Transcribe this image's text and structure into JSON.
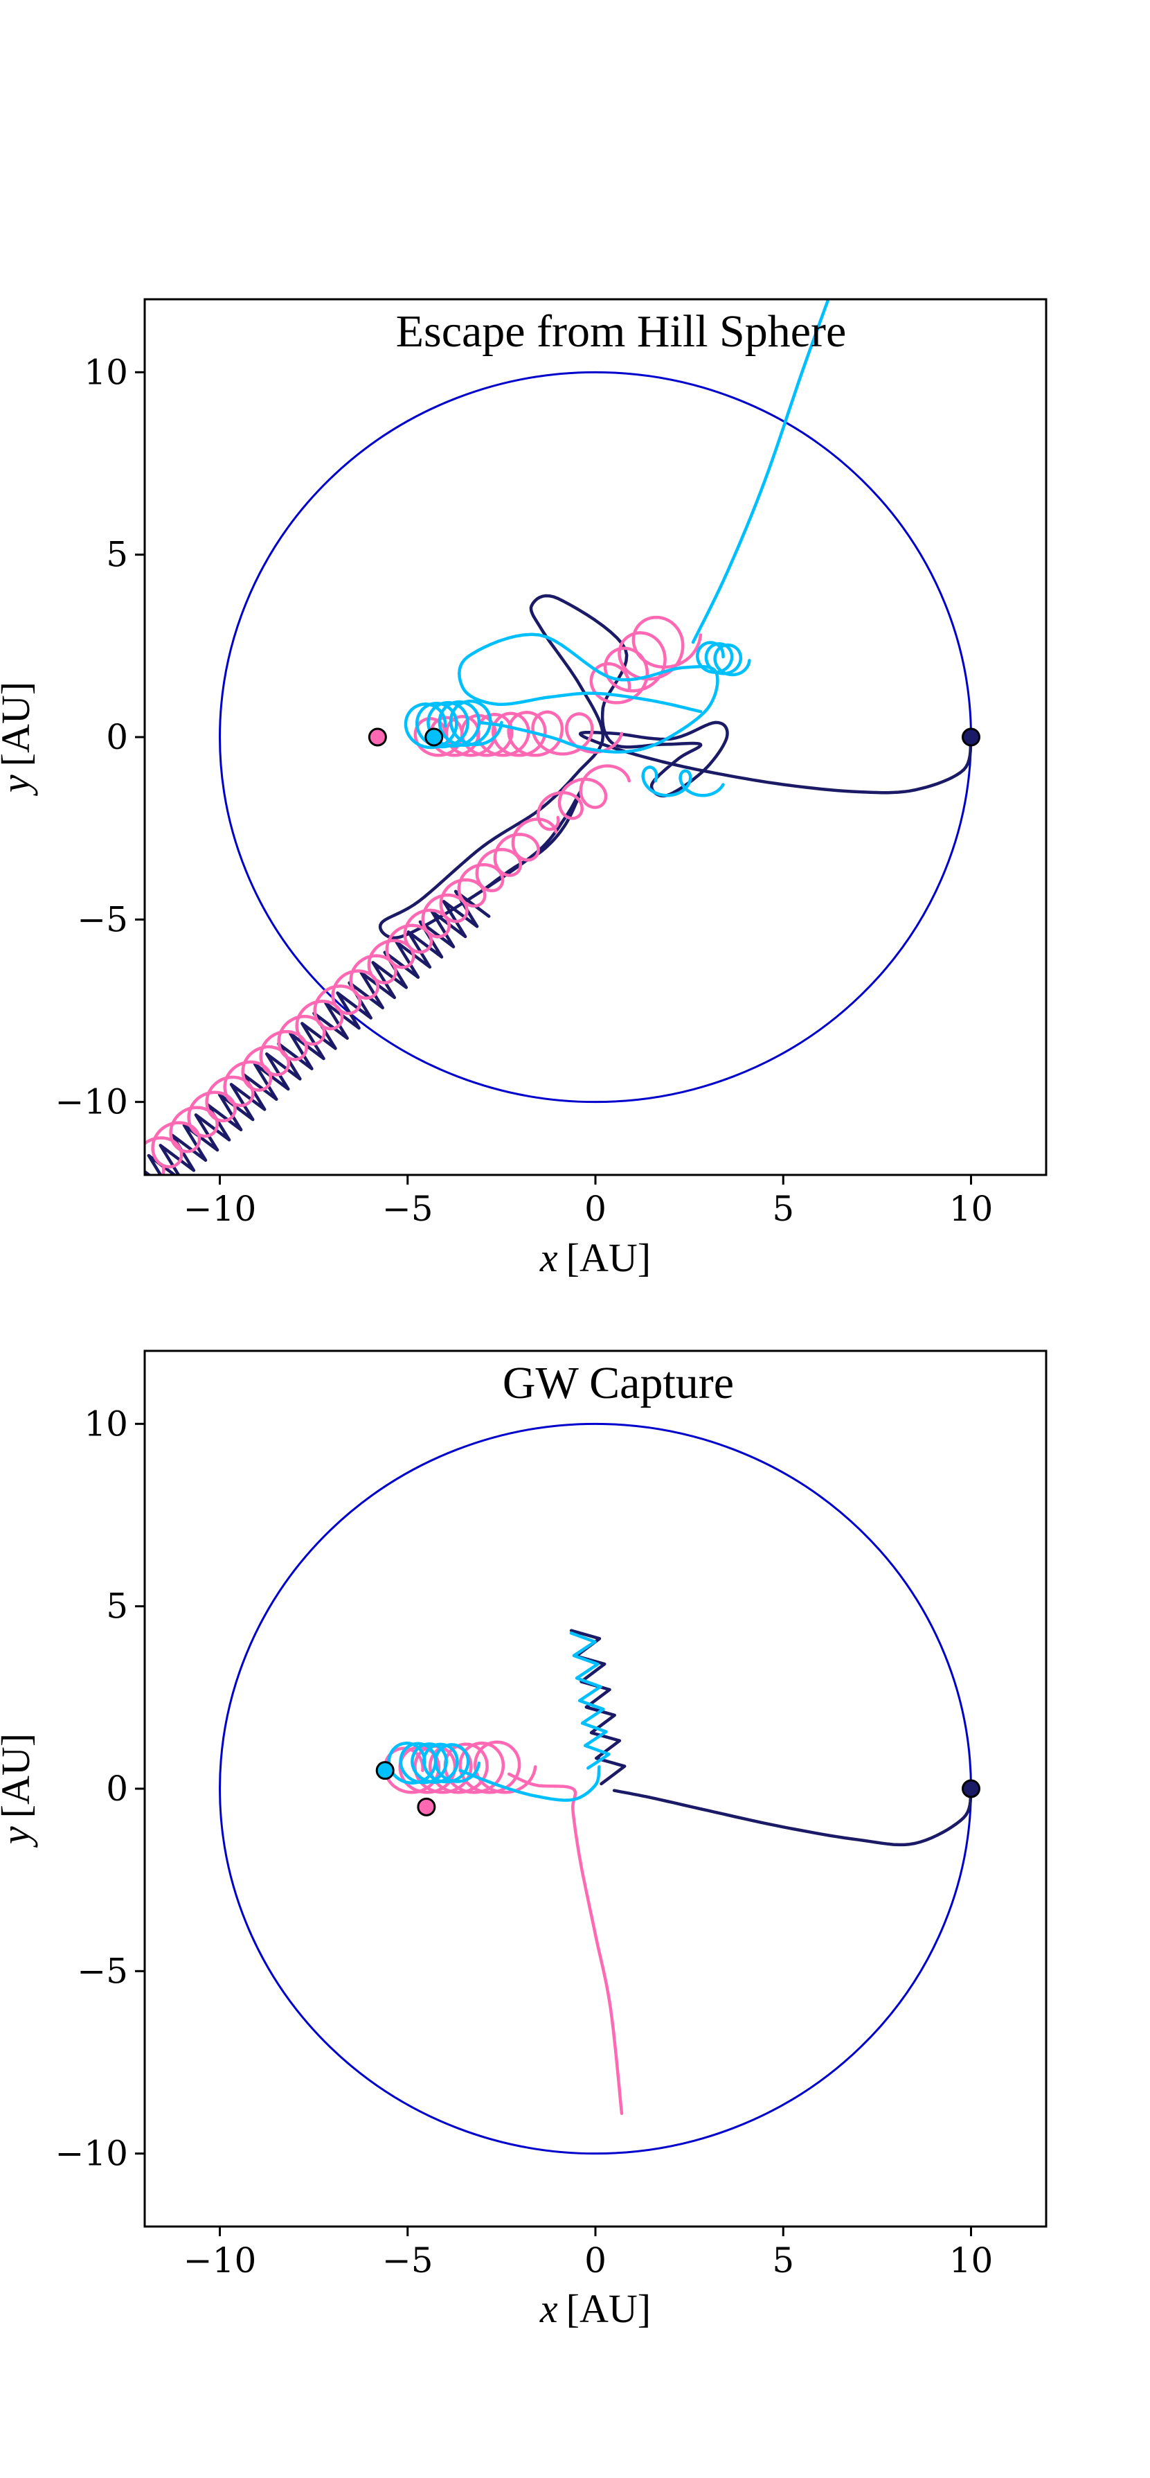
{
  "chart_data": [
    {
      "type": "line",
      "title": "Escape from Hill Sphere",
      "xlabel_var": "x",
      "xlabel_unit": "[AU]",
      "ylabel_var": "y",
      "ylabel_unit": "[AU]",
      "xlim": [
        -12,
        12
      ],
      "ylim": [
        -12,
        12
      ],
      "xticks": [
        -10,
        -5,
        0,
        5,
        10
      ],
      "yticks": [
        -10,
        -5,
        0,
        5,
        10
      ],
      "xtick_labels": [
        "−10",
        "−5",
        "0",
        "5",
        "10"
      ],
      "ytick_labels": [
        "−10",
        "−5",
        "0",
        "5",
        "10"
      ],
      "grid": false,
      "hill_sphere": {
        "center": [
          0,
          0
        ],
        "radius": 10,
        "color": "#0000cc"
      },
      "series": [
        {
          "color": "#1a1a66",
          "marker": {
            "x": 10,
            "y": 0
          },
          "segments": [
            {
              "kind": "path",
              "points": [
                [
                  10,
                  0
                ],
                [
                  9.8,
                  -0.9
                ],
                [
                  8.5,
                  -1.45
                ],
                [
                  7,
                  -1.5
                ],
                [
                  5,
                  -1.3
                ],
                [
                  3,
                  -0.95
                ],
                [
                  1.5,
                  -0.6
                ],
                [
                  0.2,
                  -0.2
                ],
                [
                  -0.4,
                  0.1
                ],
                [
                  0.5,
                  0.1
                ],
                [
                  2,
                  -0.05
                ],
                [
                  3.2,
                  0.4
                ],
                [
                  3.5,
                  0
                ],
                [
                  2.9,
                  -0.9
                ],
                [
                  1.9,
                  -1.6
                ],
                [
                  1.5,
                  -1.3
                ],
                [
                  2.2,
                  -0.6
                ],
                [
                  2.8,
                  -0.2
                ],
                [
                  1.8,
                  -0.2
                ],
                [
                  0.5,
                  -0.2
                ],
                [
                  0.2,
                  0.8
                ],
                [
                  0.8,
                  2.4
                ],
                [
                  -1,
                  3.8
                ],
                [
                  -1.7,
                  3.6
                ],
                [
                  -1.4,
                  2.9
                ],
                [
                  -0.4,
                  1.4
                ],
                [
                  0.2,
                  0
                ],
                [
                  -0.5,
                  -1
                ],
                [
                  -1.5,
                  -2
                ],
                [
                  -3,
                  -3
                ],
                [
                  -4.7,
                  -4.5
                ],
                [
                  -5.7,
                  -5.1
                ],
                [
                  -5.4,
                  -5.5
                ],
                [
                  -4.6,
                  -5.2
                ],
                [
                  -3,
                  -4.2
                ],
                [
                  -1.5,
                  -3.1
                ],
                [
                  -0.8,
                  -2.2
                ],
                [
                  -0.4,
                  -1.5
                ],
                [
                  -0.8,
                  -2.4
                ],
                [
                  -1.4,
                  -3.1
                ],
                [
                  -2.2,
                  -3.6
                ],
                [
                  -3,
                  -4.2
                ]
              ]
            },
            {
              "kind": "zigzag",
              "start": [
                -3.2,
                -4.5
              ],
              "end": [
                -12,
                -12.3
              ],
              "amplitude": 0.55,
              "count": 28
            }
          ]
        },
        {
          "color": "#ff69b4",
          "marker": {
            "x": -5.8,
            "y": 0
          },
          "segments": [
            {
              "kind": "coil",
              "start": [
                -4.5,
                0
              ],
              "end": [
                -1.5,
                0.1
              ],
              "r_start": 0.5,
              "r_end": 0.6,
              "loops": 7
            },
            {
              "kind": "coil",
              "start": [
                -1.5,
                0.1
              ],
              "end": [
                0.2,
                0.1
              ],
              "r_start": 0.6,
              "r_end": 0.5,
              "loops": 2
            },
            {
              "kind": "coil",
              "start": [
                0.3,
                1.3
              ],
              "end": [
                2,
                2.8
              ],
              "r_start": 0.6,
              "r_end": 0.8,
              "loops": 4
            },
            {
              "kind": "coil",
              "start": [
                0.4,
                -1.2
              ],
              "end": [
                -1.4,
                -2.2
              ],
              "r_start": 0.5,
              "r_end": 0.4,
              "loops": 3
            },
            {
              "kind": "coil",
              "start": [
                -1.5,
                -2.6
              ],
              "end": [
                -12,
                -11.8
              ],
              "r_start": 0.45,
              "r_end": 0.5,
              "loops": 22
            }
          ]
        },
        {
          "color": "#00bfff",
          "marker": {
            "x": -4.3,
            "y": 0
          },
          "segments": [
            {
              "kind": "coil",
              "start": [
                -4.6,
                0.3
              ],
              "end": [
                -3.1,
                0.4
              ],
              "r_start": 0.6,
              "r_end": 0.6,
              "loops": 5
            },
            {
              "kind": "path",
              "points": [
                [
                  -3.1,
                  0.4
                ],
                [
                  -2.4,
                  0.3
                ],
                [
                  -1.2,
                  0
                ],
                [
                  -0.3,
                  -0.3
                ],
                [
                  0.8,
                  -0.4
                ],
                [
                  1.8,
                  -0.1
                ],
                [
                  3,
                  0.8
                ],
                [
                  3.2,
                  1.8
                ],
                [
                  2.3,
                  1.9
                ],
                [
                  0.5,
                  1.6
                ],
                [
                  -1.5,
                  2.8
                ],
                [
                  -3.4,
                  2.2
                ],
                [
                  -3.5,
                  1.3
                ],
                [
                  -2.6,
                  0.9
                ],
                [
                  -1.2,
                  1.1
                ],
                [
                  0,
                  1.2
                ],
                [
                  1.5,
                  1
                ],
                [
                  2.8,
                  0.7
                ]
              ]
            },
            {
              "kind": "coil",
              "start": [
                1.2,
                -1.2
              ],
              "end": [
                3.1,
                -1.3
              ],
              "r_start": 0.4,
              "r_end": 0.3,
              "loops": 2
            },
            {
              "kind": "coil",
              "start": [
                3,
                2.2
              ],
              "end": [
                3.7,
                2.1
              ],
              "r_start": 0.4,
              "r_end": 0.4,
              "loops": 3
            },
            {
              "kind": "path",
              "points": [
                [
                  2.6,
                  2.6
                ],
                [
                  3.5,
                  4.5
                ],
                [
                  4.5,
                  7
                ],
                [
                  5.5,
                  10
                ],
                [
                  6.2,
                  12
                ]
              ]
            }
          ]
        }
      ]
    },
    {
      "type": "line",
      "title": "GW Capture",
      "xlabel_var": "x",
      "xlabel_unit": "[AU]",
      "ylabel_var": "y",
      "ylabel_unit": "[AU]",
      "xlim": [
        -12,
        12
      ],
      "ylim": [
        -12,
        12
      ],
      "xticks": [
        -10,
        -5,
        0,
        5,
        10
      ],
      "yticks": [
        -10,
        -5,
        0,
        5,
        10
      ],
      "xtick_labels": [
        "−10",
        "−5",
        "0",
        "5",
        "10"
      ],
      "ytick_labels": [
        "−10",
        "−5",
        "0",
        "5",
        "10"
      ],
      "grid": false,
      "hill_sphere": {
        "center": [
          0,
          0
        ],
        "radius": 10,
        "color": "#0000cc"
      },
      "series": [
        {
          "color": "#1a1a66",
          "marker": {
            "x": 10,
            "y": 0
          },
          "segments": [
            {
              "kind": "path",
              "points": [
                [
                  10,
                  0
                ],
                [
                  9.8,
                  -0.8
                ],
                [
                  8.5,
                  -1.5
                ],
                [
                  7,
                  -1.4
                ],
                [
                  5,
                  -1.05
                ],
                [
                  3,
                  -0.6
                ],
                [
                  1.5,
                  -0.25
                ],
                [
                  0.5,
                  -0.05
                ]
              ]
            },
            {
              "kind": "zigzag",
              "start": [
                0.5,
                0.2
              ],
              "end": [
                -0.3,
                4.4
              ],
              "amplitude": 0.35,
              "count": 6
            }
          ]
        },
        {
          "color": "#ff69b4",
          "marker": {
            "x": -4.5,
            "y": -0.5
          },
          "segments": [
            {
              "kind": "coil",
              "start": [
                -5.2,
                0.5
              ],
              "end": [
                -2.3,
                0.6
              ],
              "r_start": 0.6,
              "r_end": 0.7,
              "loops": 7
            },
            {
              "kind": "path",
              "points": [
                [
                  -2.3,
                  0.4
                ],
                [
                  -1.6,
                  0.1
                ],
                [
                  -0.6,
                  0
                ],
                [
                  -0.6,
                  -0.6
                ],
                [
                  -0.4,
                  -2
                ],
                [
                  0,
                  -4
                ],
                [
                  0.4,
                  -6
                ],
                [
                  0.7,
                  -8.9
                ]
              ]
            }
          ]
        },
        {
          "color": "#00bfff",
          "marker": {
            "x": -5.6,
            "y": 0.5
          },
          "segments": [
            {
              "kind": "coil",
              "start": [
                -5.1,
                0.7
              ],
              "end": [
                -3.6,
                0.7
              ],
              "r_start": 0.55,
              "r_end": 0.5,
              "loops": 5
            },
            {
              "kind": "path",
              "points": [
                [
                  -3.6,
                  0.5
                ],
                [
                  -2.6,
                  0.1
                ],
                [
                  -1.6,
                  -0.2
                ],
                [
                  -0.6,
                  -0.3
                ],
                [
                  0,
                  0.1
                ],
                [
                  0.1,
                  0.6
                ]
              ]
            },
            {
              "kind": "zigzag",
              "start": [
                0.1,
                0.6
              ],
              "end": [
                -0.35,
                4.3
              ],
              "amplitude": 0.3,
              "count": 6
            }
          ]
        }
      ]
    }
  ]
}
